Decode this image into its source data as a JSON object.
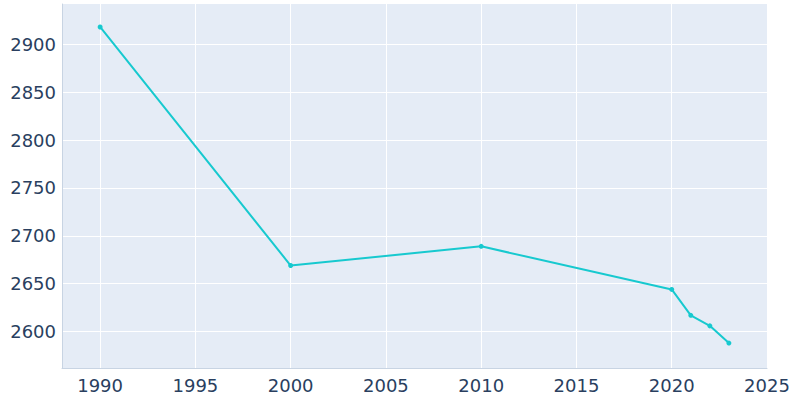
{
  "chart_data": {
    "type": "line",
    "x": [
      1990,
      2000,
      2010,
      2020,
      2021,
      2022,
      2023
    ],
    "values": [
      2918,
      2669,
      2689,
      2644,
      2617,
      2606,
      2588
    ],
    "color": "#17c9cf",
    "marker": "circle",
    "xlim": [
      1988,
      2025
    ],
    "xticks": [
      1990,
      1995,
      2000,
      2005,
      2010,
      2015,
      2020,
      2025
    ],
    "ylim": [
      2562,
      2942
    ],
    "yticks": [
      2600,
      2650,
      2700,
      2750,
      2800,
      2850,
      2900
    ],
    "grid": true
  }
}
